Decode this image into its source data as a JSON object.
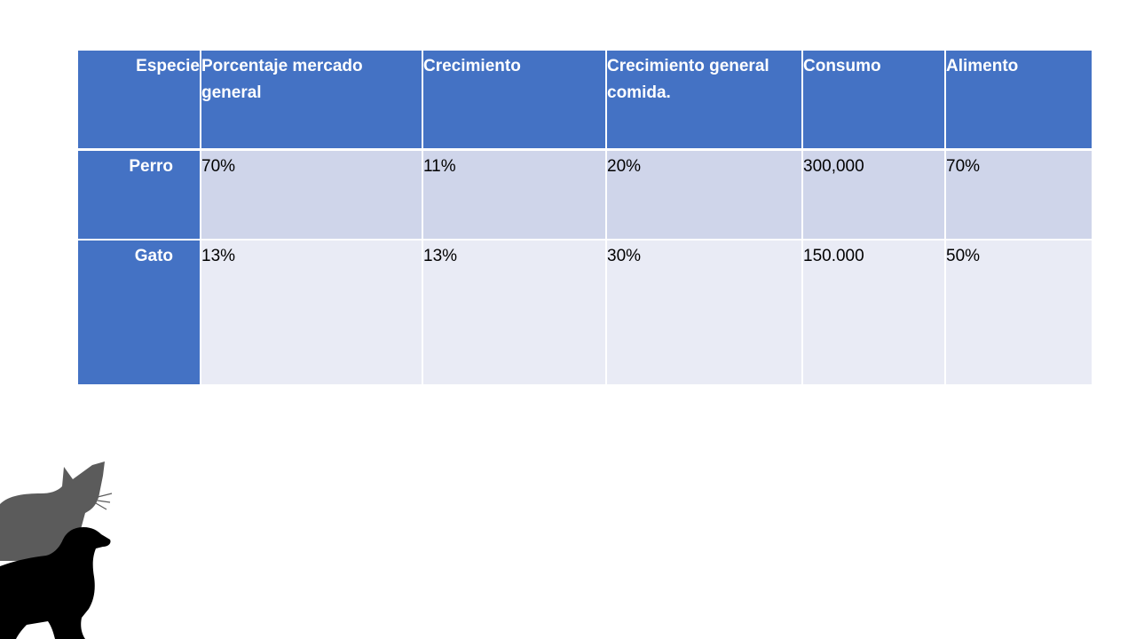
{
  "table": {
    "headers": {
      "especie": "Especie",
      "porcentaje": "Porcentaje mercado general",
      "crecimiento": "Crecimiento",
      "crecimiento_general": "Crecimiento general comida.",
      "consumo": "Consumo",
      "alimento": "Alimento"
    },
    "rows": [
      {
        "especie": "Perro",
        "porcentaje": "70%",
        "crecimiento": "11%",
        "crecimiento_general": "20%",
        "consumo": "300,000",
        "alimento": "70%"
      },
      {
        "especie": "Gato",
        "porcentaje": "13%",
        "crecimiento": "13%",
        "crecimiento_general": "30%",
        "consumo": "150.000",
        "alimento": "50%"
      }
    ]
  },
  "colors": {
    "header": "#4472c4",
    "row_odd": "#cfd5ea",
    "row_even": "#e9ebf5",
    "cat_silhouette": "#5b5b5b",
    "dog_silhouette": "#000000"
  },
  "illustration": {
    "icons": [
      "cat-silhouette-icon",
      "dog-silhouette-icon"
    ]
  }
}
